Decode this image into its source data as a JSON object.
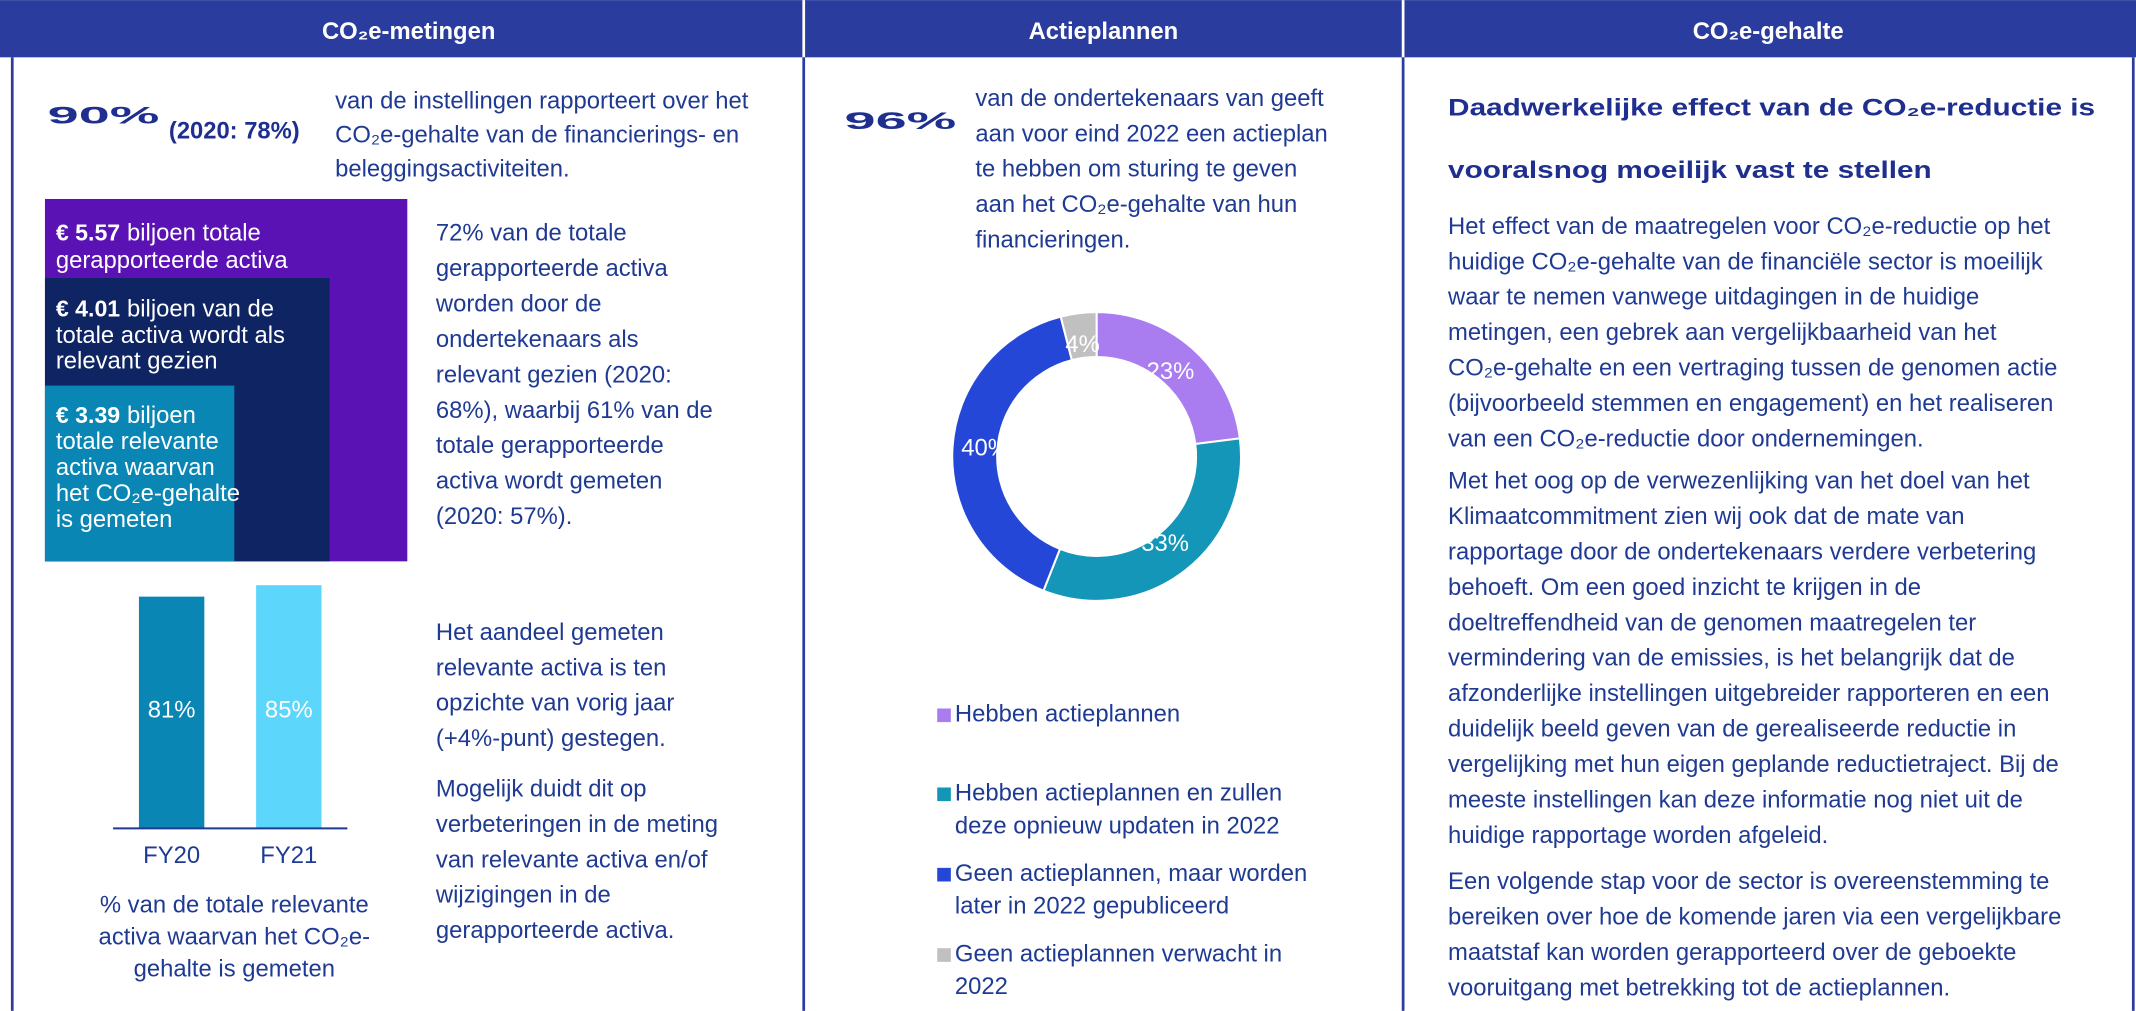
{
  "header": {
    "columns": [
      "CO₂e-metingen",
      "Actieplannen",
      "CO₂e-gehalte"
    ]
  },
  "metingen": {
    "headline": "90%",
    "headline_note": "(2020: 78%)",
    "intro": [
      "van de instellingen rapporteert over het",
      "CO₂e-gehalte van de financierings- en",
      "beleggingsactiviteiten."
    ],
    "squares": [
      {
        "amount": "€ 5.57",
        "lines": [
          "biljoen totale",
          "gerapporteerde activa"
        ]
      },
      {
        "amount": "€ 4.01",
        "lines": [
          "biljoen van de",
          "totale activa wordt als",
          "relevant gezien"
        ]
      },
      {
        "amount": "€ 3.39",
        "lines": [
          "biljoen",
          "totale relevante",
          "activa waarvan",
          "het CO₂e-gehalte",
          "is gemeten"
        ]
      }
    ],
    "text_1": [
      "72% van de totale",
      "gerapporteerde activa",
      "worden door de",
      "ondertekenaars als",
      "relevant gezien (2020:",
      "68%), waarbij 61% van de",
      "totale gerapporteerde",
      "activa wordt gemeten",
      "(2020: 57%)."
    ],
    "bar_chart": {
      "type": "bar",
      "categories": [
        "FY20",
        "FY21"
      ],
      "values": [
        81,
        85
      ],
      "value_labels": [
        "81%",
        "85%"
      ],
      "colors": [
        "#0a86b5",
        "#5dd6fb"
      ],
      "caption": [
        "% van de totale relevante",
        "activa waarvan het CO₂e-",
        "gehalte is gemeten"
      ]
    },
    "text_2": [
      "Het aandeel gemeten",
      "relevante activa is ten",
      "opzichte van vorig jaar",
      "(+4%-punt) gestegen."
    ],
    "text_3": [
      "Mogelijk duidt dit op",
      "verbeteringen in de meting",
      "van relevante activa en/of",
      "wijzigingen in de",
      "gerapporteerde activa."
    ]
  },
  "actieplannen": {
    "headline": "96%",
    "intro": [
      "van de ondertekenaars van geeft",
      "aan voor eind 2022 een actieplan",
      "te hebben om sturing te geven",
      "aan het CO₂e-gehalte van hun",
      "financieringen."
    ],
    "donut": {
      "type": "pie",
      "categories": [
        [
          "Hebben actieplannen"
        ],
        [
          "Hebben actieplannen en zullen",
          "deze opnieuw updaten in 2022"
        ],
        [
          "Geen actieplannen, maar worden",
          "later in 2022 gepubliceerd"
        ],
        [
          "Geen actieplannen verwacht in",
          "2022"
        ]
      ],
      "values": [
        23,
        33,
        40,
        4
      ],
      "value_labels": [
        "23%",
        "33%",
        "40%",
        "4%"
      ],
      "colors": [
        "#a97cf0",
        "#1496b8",
        "#2447d8",
        "#c0c0c0"
      ]
    }
  },
  "gehalte": {
    "heading": [
      "Daadwerkelijke effect van de CO₂e-reductie is",
      "vooralsnog moeilijk vast te stellen"
    ],
    "paragraphs": [
      [
        "Het effect van de maatregelen voor CO₂e-reductie op het",
        "huidige CO₂e-gehalte van de financiële sector is moeilijk",
        "waar te nemen vanwege uitdagingen in de huidige",
        "metingen, een gebrek aan vergelijkbaarheid van het",
        "CO₂e-gehalte en een vertraging tussen de genomen actie",
        "(bijvoorbeeld stemmen en engagement) en het realiseren",
        "van een CO₂e-reductie door ondernemingen."
      ],
      [
        "Met het oog op de verwezenlijking van het doel van het",
        "Klimaatcommitment zien wij ook dat de mate van",
        "rapportage door de ondertekenaars verdere verbetering",
        "behoeft. Om een goed inzicht te krijgen in de",
        "doeltreffendheid van de genomen maatregelen ter",
        "vermindering van de emissies, is het belangrijk dat de",
        "afzonderlijke instellingen uitgebreider rapporteren en een",
        "duidelijk beeld geven van de gerealiseerde reductie in",
        "vergelijking met hun eigen geplande reductietraject. Bij de",
        "meeste instellingen kan deze informatie nog niet uit de",
        "huidige rapportage worden afgeleid."
      ],
      [
        "Een volgende stap voor de sector is overeenstemming te",
        "bereiken over hoe de komende jaren via een vergelijkbare",
        "maatstaf kan worden gerapporteerd over de geboekte",
        "vooruitgang met betrekking tot de actieplannen."
      ]
    ]
  }
}
